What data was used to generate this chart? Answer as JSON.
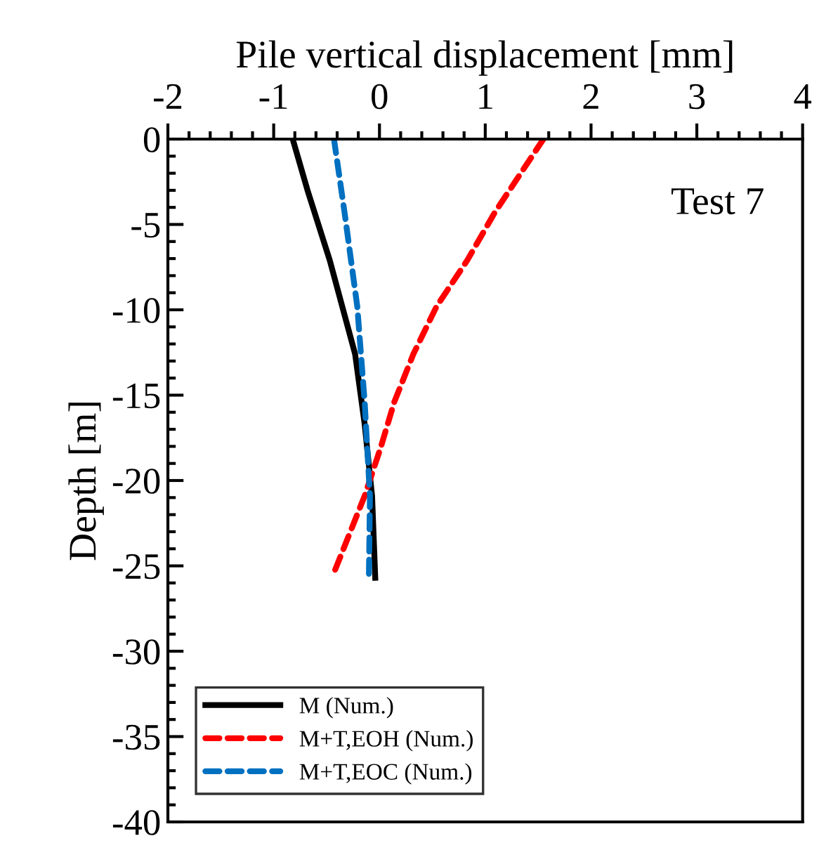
{
  "chart_data": {
    "type": "line",
    "xlabel": "Pile vertical displacement [mm]",
    "ylabel": "Depth [m]",
    "annotations": [
      "Test 7"
    ],
    "xlim": [
      -2,
      4
    ],
    "xticks": [
      -2,
      -1,
      0,
      1,
      2,
      3,
      4
    ],
    "ylim": [
      -40,
      0
    ],
    "yticks": [
      -40,
      -35,
      -30,
      -25,
      -20,
      -15,
      -10,
      -5,
      0
    ],
    "grid": false,
    "legend": "bottom left",
    "series": [
      {
        "name": "M (Num.)",
        "color": "#000000",
        "line_style": "solid",
        "x": [
          -0.82,
          -0.68,
          -0.47,
          -0.23,
          -0.14,
          -0.07,
          -0.04
        ],
        "values": [
          0,
          -3.0,
          -7.1,
          -12.6,
          -16.7,
          -20.9,
          -25.7
        ]
      },
      {
        "name": "M+T,EOH (Num.)",
        "color": "#ff0000",
        "line_style": "dashed",
        "x": [
          1.55,
          1.09,
          0.83,
          0.54,
          0.32,
          0.14,
          0.01,
          -0.14,
          -0.43
        ],
        "values": [
          0,
          -4.3,
          -7.1,
          -9.8,
          -12.6,
          -15.4,
          -18.1,
          -20.9,
          -25.4
        ]
      },
      {
        "name": "M+T,EOC (Num.)",
        "color": "#0070c0",
        "line_style": "dashed",
        "x": [
          -0.43,
          -0.33,
          -0.21,
          -0.14,
          -0.09,
          -0.1
        ],
        "values": [
          0,
          -4.3,
          -9.8,
          -15.4,
          -20.9,
          -25.7
        ]
      }
    ]
  }
}
